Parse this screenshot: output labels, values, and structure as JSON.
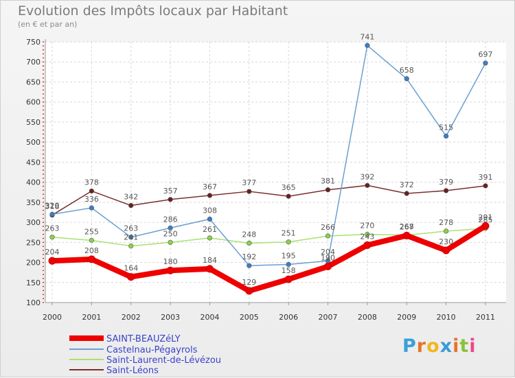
{
  "title": "Evolution des Impôts locaux par Habitant",
  "subtitle": "(en € et par an)",
  "logo": {
    "text": "Proxiti",
    "letter_colors": [
      "#3aa0d8",
      "#e8732a",
      "#f0b820",
      "#3a9ad8",
      "#e8732a",
      "#8ac23a",
      "#e84a8a"
    ]
  },
  "chart_data": {
    "type": "line",
    "title": "Evolution des Impôts locaux par Habitant",
    "subtitle": "(en € et par an)",
    "xlabel": "",
    "ylabel": "",
    "x": [
      "2000",
      "2001",
      "2002",
      "2003",
      "2004",
      "2005",
      "2006",
      "2007",
      "2008",
      "2009",
      "2010",
      "2011"
    ],
    "ylim": [
      100,
      750
    ],
    "yticks": [
      100,
      150,
      200,
      250,
      300,
      350,
      400,
      450,
      500,
      550,
      600,
      650,
      700,
      750
    ],
    "grid": true,
    "legend_position": "bottom-left",
    "series": [
      {
        "name": "SAINT-BEAUZéLY",
        "values": [
          204,
          208,
          164,
          180,
          184,
          129,
          158,
          190,
          243,
          267,
          230,
          291
        ],
        "labels": [
          "204",
          "208",
          "164",
          "180",
          "184",
          "129",
          "158",
          "190",
          "243",
          "267",
          "230",
          "291"
        ],
        "color": "#ee0000",
        "marker": "#ee0000"
      },
      {
        "name": "Castelnau-Pégayrols",
        "values": [
          320,
          336,
          263,
          286,
          308,
          192,
          195,
          204,
          741,
          658,
          515,
          697
        ],
        "labels": [
          "320",
          "336",
          "263",
          "286",
          "308",
          "192",
          "195",
          "204",
          "741",
          "658",
          "515",
          "697"
        ],
        "color": "#6a9fd0",
        "marker": "#3a7fc8"
      },
      {
        "name": "Saint-Laurent-de-Lévézou",
        "values": [
          263,
          255,
          241,
          250,
          261,
          248,
          251,
          266,
          270,
          268,
          278,
          285
        ],
        "labels": [
          "263",
          "255",
          "241",
          "250",
          "261",
          "248",
          "251",
          "266",
          "270",
          "268",
          "278",
          "285"
        ],
        "color": "#a8e070",
        "marker": "#8bd24a"
      },
      {
        "name": "Saint-Léons",
        "values": [
          318,
          378,
          342,
          357,
          367,
          377,
          365,
          381,
          392,
          372,
          379,
          391
        ],
        "labels": [
          "318",
          "378",
          "342",
          "357",
          "367",
          "377",
          "365",
          "381",
          "392",
          "372",
          "379",
          "391"
        ],
        "color": "#7a2e2e",
        "marker": "#6a2020"
      }
    ]
  }
}
